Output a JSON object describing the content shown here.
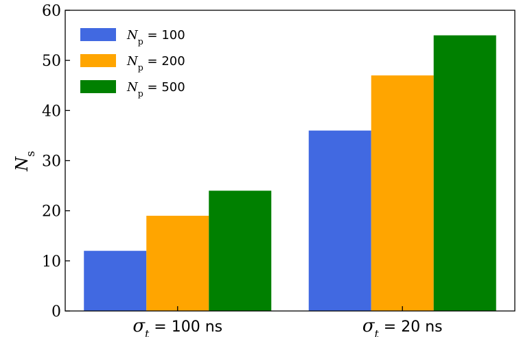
{
  "chart_data": {
    "type": "bar",
    "categories": [
      "σ_t = 100 ns",
      "σ_t = 20 ns"
    ],
    "category_labels": [
      {
        "symbol": "σ",
        "sub": "t",
        "rest": " = 100 ns"
      },
      {
        "symbol": "σ",
        "sub": "t",
        "rest": " = 20 ns"
      }
    ],
    "series": [
      {
        "name": "N_p = 100",
        "legend": {
          "symbol": "N",
          "sub": "p",
          "rest": " = 100"
        },
        "values": [
          12,
          36
        ],
        "color": "#4169e1"
      },
      {
        "name": "N_p = 200",
        "legend": {
          "symbol": "N",
          "sub": "p",
          "rest": " = 200"
        },
        "values": [
          19,
          47
        ],
        "color": "#ffa500"
      },
      {
        "name": "N_p = 500",
        "legend": {
          "symbol": "N",
          "sub": "p",
          "rest": " = 500"
        },
        "values": [
          24,
          55
        ],
        "color": "#008000"
      }
    ],
    "ylabel": {
      "symbol": "N",
      "sub": "s"
    },
    "xlabel": "",
    "title": "",
    "ylim": [
      0,
      60
    ],
    "yticks": [
      "0",
      "10",
      "20",
      "30",
      "40",
      "50",
      "60"
    ],
    "ytick_values": [
      0,
      10,
      20,
      30,
      40,
      50,
      60
    ],
    "legend_position": "top-left",
    "grid": false
  }
}
